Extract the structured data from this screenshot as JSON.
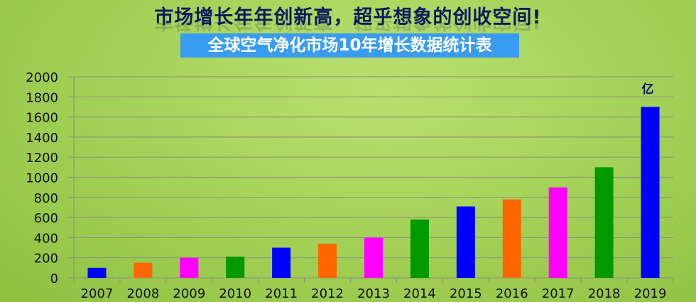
{
  "header": {
    "headline": "市场增长年年创新高，超乎想象的创收空间!",
    "subtitle": "全球空气净化市场10年增长数据统计表"
  },
  "chart_data": {
    "type": "bar",
    "title": "全球空气净化市场10年增长数据统计表",
    "unit_label": "亿",
    "categories": [
      "2007",
      "2008",
      "2009",
      "2010",
      "2011",
      "2012",
      "2013",
      "2014",
      "2015",
      "2016",
      "2017",
      "2018",
      "2019"
    ],
    "values": [
      100,
      150,
      200,
      210,
      300,
      340,
      400,
      580,
      710,
      780,
      900,
      1100,
      1700
    ],
    "colors": [
      "#0000ff",
      "#ff6600",
      "#ff00ff",
      "#009900",
      "#0000ff",
      "#ff6600",
      "#ff00ff",
      "#009900",
      "#0000ff",
      "#ff6600",
      "#ff00ff",
      "#009900",
      "#0000ff"
    ],
    "ylim": [
      0,
      2000
    ],
    "yticks": [
      "0",
      "200",
      "400",
      "600",
      "800",
      "1000",
      "1200",
      "1400",
      "1600",
      "1800",
      "2000"
    ],
    "grid": true,
    "xlabel": "",
    "ylabel": ""
  }
}
